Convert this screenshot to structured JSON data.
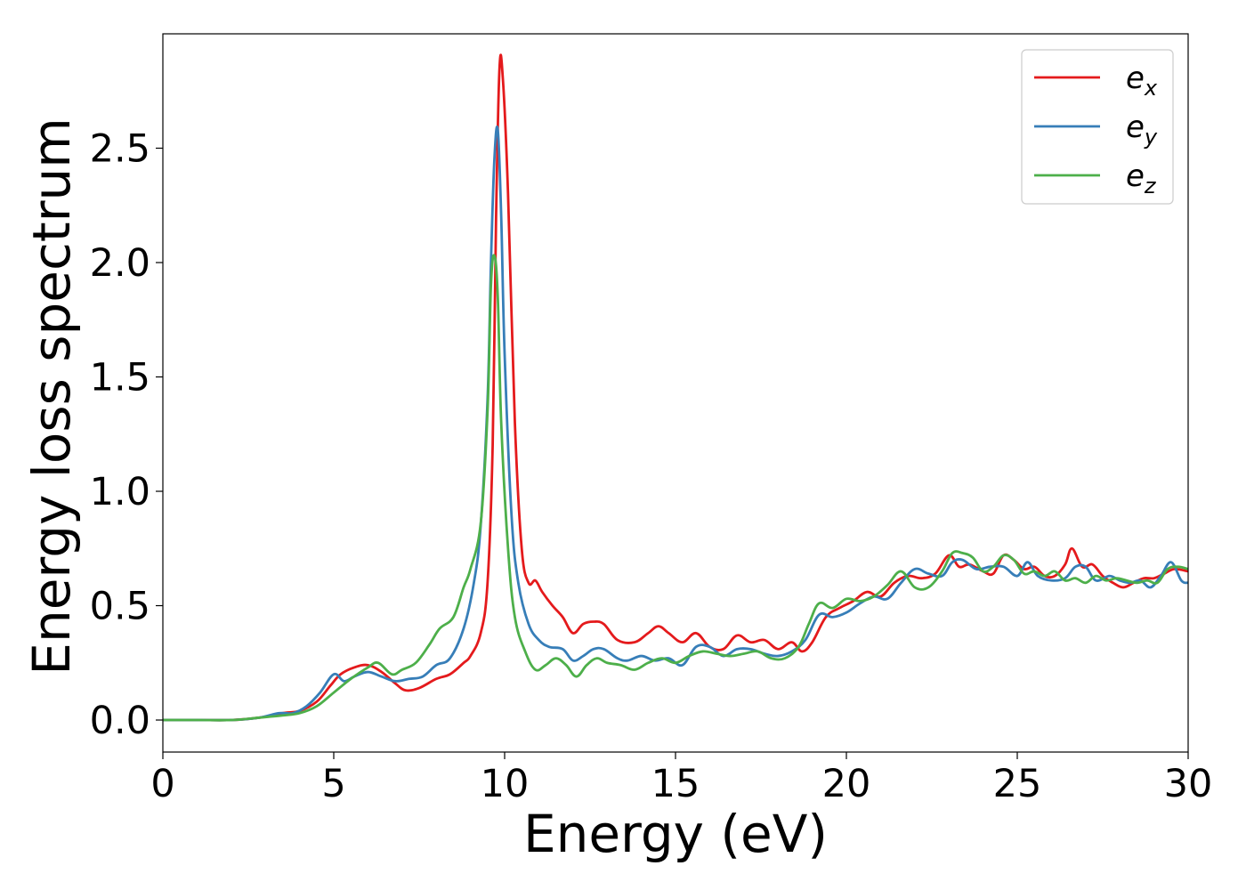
{
  "chart_data": {
    "type": "line",
    "title": "",
    "xlabel": "Energy (eV)",
    "ylabel": "Energy loss spectrum",
    "xlim": [
      0,
      30
    ],
    "ylim": [
      -0.14,
      3.0
    ],
    "xticks": [
      0,
      5,
      10,
      15,
      20,
      25,
      30
    ],
    "xtick_labels": [
      "0",
      "5",
      "10",
      "15",
      "20",
      "25",
      "30"
    ],
    "yticks": [
      0.0,
      0.5,
      1.0,
      1.5,
      2.0,
      2.5
    ],
    "ytick_labels": [
      "0.0",
      "0.5",
      "1.0",
      "1.5",
      "2.0",
      "2.5"
    ],
    "grid": false,
    "legend_position": "top-right",
    "series": [
      {
        "name": "e_x",
        "legend_base": "e",
        "legend_sub": "x",
        "color": "#e41a1c",
        "x": [
          0,
          1,
          2,
          2.8,
          3.5,
          4.0,
          4.5,
          4.9,
          5.2,
          5.6,
          6.0,
          6.4,
          6.8,
          7.1,
          7.5,
          8.0,
          8.4,
          8.8,
          9.0,
          9.3,
          9.5,
          9.65,
          9.75,
          9.85,
          9.95,
          10.1,
          10.3,
          10.5,
          10.7,
          10.9,
          11.1,
          11.4,
          11.7,
          12.0,
          12.3,
          12.6,
          12.9,
          13.3,
          13.8,
          14.2,
          14.5,
          14.8,
          15.2,
          15.6,
          16.0,
          16.4,
          16.8,
          17.2,
          17.6,
          18.0,
          18.4,
          18.7,
          19.0,
          19.4,
          19.8,
          20.2,
          20.6,
          21.0,
          21.4,
          21.8,
          22.2,
          22.6,
          23.0,
          23.3,
          23.6,
          24.0,
          24.3,
          24.6,
          24.9,
          25.2,
          25.5,
          25.8,
          26.1,
          26.4,
          26.6,
          26.9,
          27.2,
          27.5,
          27.8,
          28.1,
          28.4,
          28.7,
          29.0,
          29.3,
          29.6,
          30.0
        ],
        "y": [
          0.0,
          0.0,
          0.0,
          0.01,
          0.03,
          0.04,
          0.08,
          0.15,
          0.2,
          0.23,
          0.24,
          0.21,
          0.16,
          0.13,
          0.14,
          0.18,
          0.2,
          0.25,
          0.28,
          0.38,
          0.6,
          1.2,
          2.2,
          2.85,
          2.8,
          2.3,
          1.3,
          0.75,
          0.6,
          0.61,
          0.56,
          0.5,
          0.45,
          0.38,
          0.42,
          0.43,
          0.42,
          0.35,
          0.34,
          0.38,
          0.41,
          0.38,
          0.34,
          0.38,
          0.32,
          0.31,
          0.37,
          0.34,
          0.35,
          0.31,
          0.34,
          0.3,
          0.34,
          0.45,
          0.49,
          0.52,
          0.56,
          0.54,
          0.6,
          0.63,
          0.62,
          0.64,
          0.72,
          0.67,
          0.68,
          0.65,
          0.64,
          0.72,
          0.7,
          0.66,
          0.67,
          0.63,
          0.63,
          0.68,
          0.75,
          0.67,
          0.68,
          0.63,
          0.6,
          0.58,
          0.6,
          0.62,
          0.62,
          0.64,
          0.66,
          0.65
        ]
      },
      {
        "name": "e_y",
        "legend_base": "e",
        "legend_sub": "y",
        "color": "#377eb8",
        "x": [
          0,
          1,
          2,
          2.8,
          3.4,
          3.8,
          4.2,
          4.6,
          5.0,
          5.3,
          5.6,
          6.0,
          6.4,
          6.8,
          7.2,
          7.6,
          8.0,
          8.4,
          8.8,
          9.1,
          9.3,
          9.5,
          9.6,
          9.7,
          9.8,
          9.9,
          10.0,
          10.2,
          10.4,
          10.7,
          11.0,
          11.3,
          11.7,
          12.0,
          12.3,
          12.6,
          12.9,
          13.3,
          13.6,
          14.0,
          14.4,
          14.8,
          15.2,
          15.6,
          16.0,
          16.4,
          16.8,
          17.2,
          17.6,
          18.0,
          18.4,
          18.8,
          19.2,
          19.6,
          20.0,
          20.4,
          20.8,
          21.2,
          21.6,
          22.0,
          22.4,
          22.8,
          23.1,
          23.4,
          23.8,
          24.2,
          24.6,
          25.0,
          25.3,
          25.6,
          26.0,
          26.4,
          26.7,
          27.0,
          27.3,
          27.7,
          28.0,
          28.3,
          28.6,
          28.9,
          29.2,
          29.5,
          29.8,
          30.0
        ],
        "y": [
          0.0,
          0.0,
          0.0,
          0.01,
          0.03,
          0.03,
          0.06,
          0.12,
          0.2,
          0.17,
          0.19,
          0.21,
          0.19,
          0.17,
          0.18,
          0.19,
          0.24,
          0.27,
          0.4,
          0.6,
          0.85,
          1.4,
          2.0,
          2.45,
          2.58,
          2.2,
          1.6,
          0.9,
          0.6,
          0.42,
          0.35,
          0.32,
          0.31,
          0.26,
          0.28,
          0.31,
          0.31,
          0.27,
          0.26,
          0.28,
          0.26,
          0.27,
          0.24,
          0.32,
          0.32,
          0.28,
          0.31,
          0.31,
          0.29,
          0.28,
          0.3,
          0.35,
          0.46,
          0.45,
          0.47,
          0.51,
          0.54,
          0.53,
          0.6,
          0.66,
          0.64,
          0.63,
          0.69,
          0.7,
          0.66,
          0.67,
          0.67,
          0.63,
          0.69,
          0.63,
          0.61,
          0.62,
          0.67,
          0.67,
          0.61,
          0.63,
          0.61,
          0.6,
          0.61,
          0.58,
          0.63,
          0.69,
          0.61,
          0.6
        ]
      },
      {
        "name": "e_z",
        "legend_base": "e",
        "legend_sub": "z",
        "color": "#4daf4a",
        "x": [
          0,
          1,
          2,
          2.8,
          3.5,
          4.0,
          4.5,
          5.0,
          5.5,
          6.0,
          6.3,
          6.7,
          7.0,
          7.4,
          7.8,
          8.1,
          8.5,
          8.8,
          9.0,
          9.3,
          9.5,
          9.6,
          9.7,
          9.8,
          9.9,
          10.1,
          10.3,
          10.6,
          10.9,
          11.2,
          11.5,
          11.8,
          12.1,
          12.4,
          12.7,
          13.0,
          13.4,
          13.8,
          14.2,
          14.6,
          15.0,
          15.4,
          15.8,
          16.2,
          16.6,
          17.0,
          17.4,
          17.8,
          18.2,
          18.6,
          18.9,
          19.2,
          19.6,
          20.0,
          20.4,
          20.8,
          21.2,
          21.6,
          22.0,
          22.4,
          22.8,
          23.1,
          23.4,
          23.7,
          24.0,
          24.3,
          24.6,
          24.9,
          25.2,
          25.5,
          25.8,
          26.1,
          26.4,
          26.7,
          27.0,
          27.3,
          27.6,
          27.9,
          28.2,
          28.5,
          28.8,
          29.1,
          29.4,
          29.7,
          30.0
        ],
        "y": [
          0.0,
          0.0,
          0.0,
          0.01,
          0.02,
          0.03,
          0.06,
          0.12,
          0.18,
          0.23,
          0.25,
          0.2,
          0.22,
          0.25,
          0.33,
          0.4,
          0.45,
          0.58,
          0.66,
          0.86,
          1.35,
          1.9,
          2.03,
          1.85,
          1.3,
          0.75,
          0.45,
          0.3,
          0.22,
          0.24,
          0.27,
          0.24,
          0.19,
          0.24,
          0.27,
          0.25,
          0.24,
          0.22,
          0.25,
          0.27,
          0.25,
          0.28,
          0.3,
          0.29,
          0.28,
          0.29,
          0.3,
          0.27,
          0.27,
          0.32,
          0.42,
          0.51,
          0.49,
          0.53,
          0.52,
          0.54,
          0.59,
          0.65,
          0.58,
          0.58,
          0.65,
          0.73,
          0.73,
          0.71,
          0.65,
          0.67,
          0.72,
          0.7,
          0.64,
          0.65,
          0.63,
          0.65,
          0.61,
          0.62,
          0.6,
          0.63,
          0.61,
          0.62,
          0.61,
          0.6,
          0.61,
          0.6,
          0.66,
          0.67,
          0.66
        ]
      }
    ]
  }
}
